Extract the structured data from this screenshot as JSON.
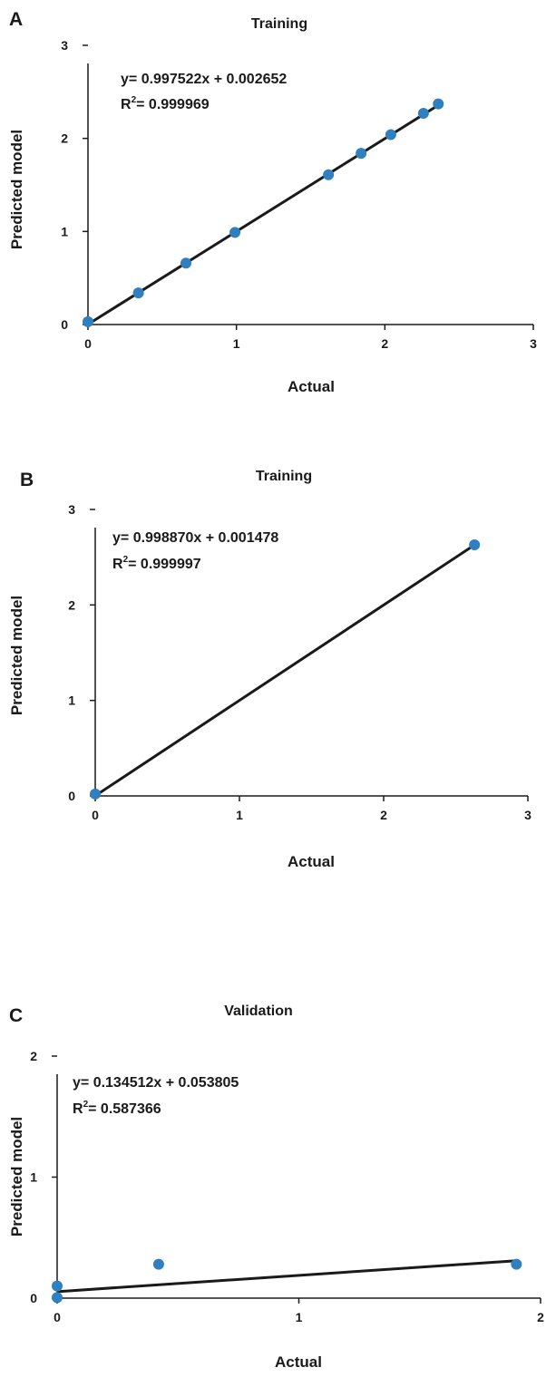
{
  "chart_data": [
    {
      "panel": "A",
      "type": "scatter",
      "title": "Training",
      "xlabel": "Actual",
      "ylabel": "Predicted model",
      "xlim": [
        0,
        3
      ],
      "ylim": [
        0,
        3
      ],
      "xticks": [
        "0",
        "1",
        "2",
        "3"
      ],
      "yticks": [
        "0",
        "1",
        "2",
        "3"
      ],
      "grid": false,
      "legend": "none",
      "point_color": "#2f7fc1",
      "line_color": "#1a1a1a",
      "equation": "y= 0.997522x + 0.002652",
      "r2_label": "R",
      "r2_sup": "2",
      "r2_value": "= 0.999969",
      "slope": 0.997522,
      "intercept": 0.002652,
      "fit_x": [
        0,
        2.36
      ],
      "points": [
        {
          "x": 0.0,
          "y": 0.03
        },
        {
          "x": 0.34,
          "y": 0.34
        },
        {
          "x": 0.66,
          "y": 0.66
        },
        {
          "x": 0.99,
          "y": 0.99
        },
        {
          "x": 1.62,
          "y": 1.61
        },
        {
          "x": 1.84,
          "y": 1.84
        },
        {
          "x": 2.04,
          "y": 2.04
        },
        {
          "x": 2.26,
          "y": 2.27
        },
        {
          "x": 2.36,
          "y": 2.37
        }
      ]
    },
    {
      "panel": "B",
      "type": "scatter",
      "title": "Training",
      "xlabel": "Actual",
      "ylabel": "Predicted model",
      "xlim": [
        0,
        3
      ],
      "ylim": [
        0,
        3
      ],
      "xticks": [
        "0",
        "1",
        "2",
        "3"
      ],
      "yticks": [
        "0",
        "1",
        "2",
        "3"
      ],
      "grid": false,
      "legend": "none",
      "point_color": "#2f7fc1",
      "line_color": "#1a1a1a",
      "equation": "y= 0.998870x + 0.001478",
      "r2_label": "R",
      "r2_sup": "2",
      "r2_value": "= 0.999997",
      "slope": 0.99887,
      "intercept": 0.001478,
      "fit_x": [
        0,
        2.63
      ],
      "points": [
        {
          "x": 0.0,
          "y": 0.02
        },
        {
          "x": 2.63,
          "y": 2.63
        }
      ]
    },
    {
      "panel": "C",
      "type": "scatter",
      "title": "Validation",
      "xlabel": "Actual",
      "ylabel": "Predicted model",
      "xlim": [
        0,
        2
      ],
      "ylim": [
        0,
        2
      ],
      "xticks": [
        "0",
        "1",
        "2"
      ],
      "yticks": [
        "0",
        "1",
        "2"
      ],
      "grid": false,
      "legend": "none",
      "point_color": "#2f7fc1",
      "line_color": "#1a1a1a",
      "equation": "y= 0.134512x + 0.053805",
      "r2_label": "R",
      "r2_sup": "2",
      "r2_value": "= 0.587366",
      "slope": 0.134512,
      "intercept": 0.053805,
      "fit_x": [
        0,
        1.9
      ],
      "points": [
        {
          "x": 0.0,
          "y": 0.1
        },
        {
          "x": 0.0,
          "y": 0.005
        },
        {
          "x": 0.42,
          "y": 0.28
        },
        {
          "x": 1.9,
          "y": 0.28
        }
      ]
    }
  ]
}
